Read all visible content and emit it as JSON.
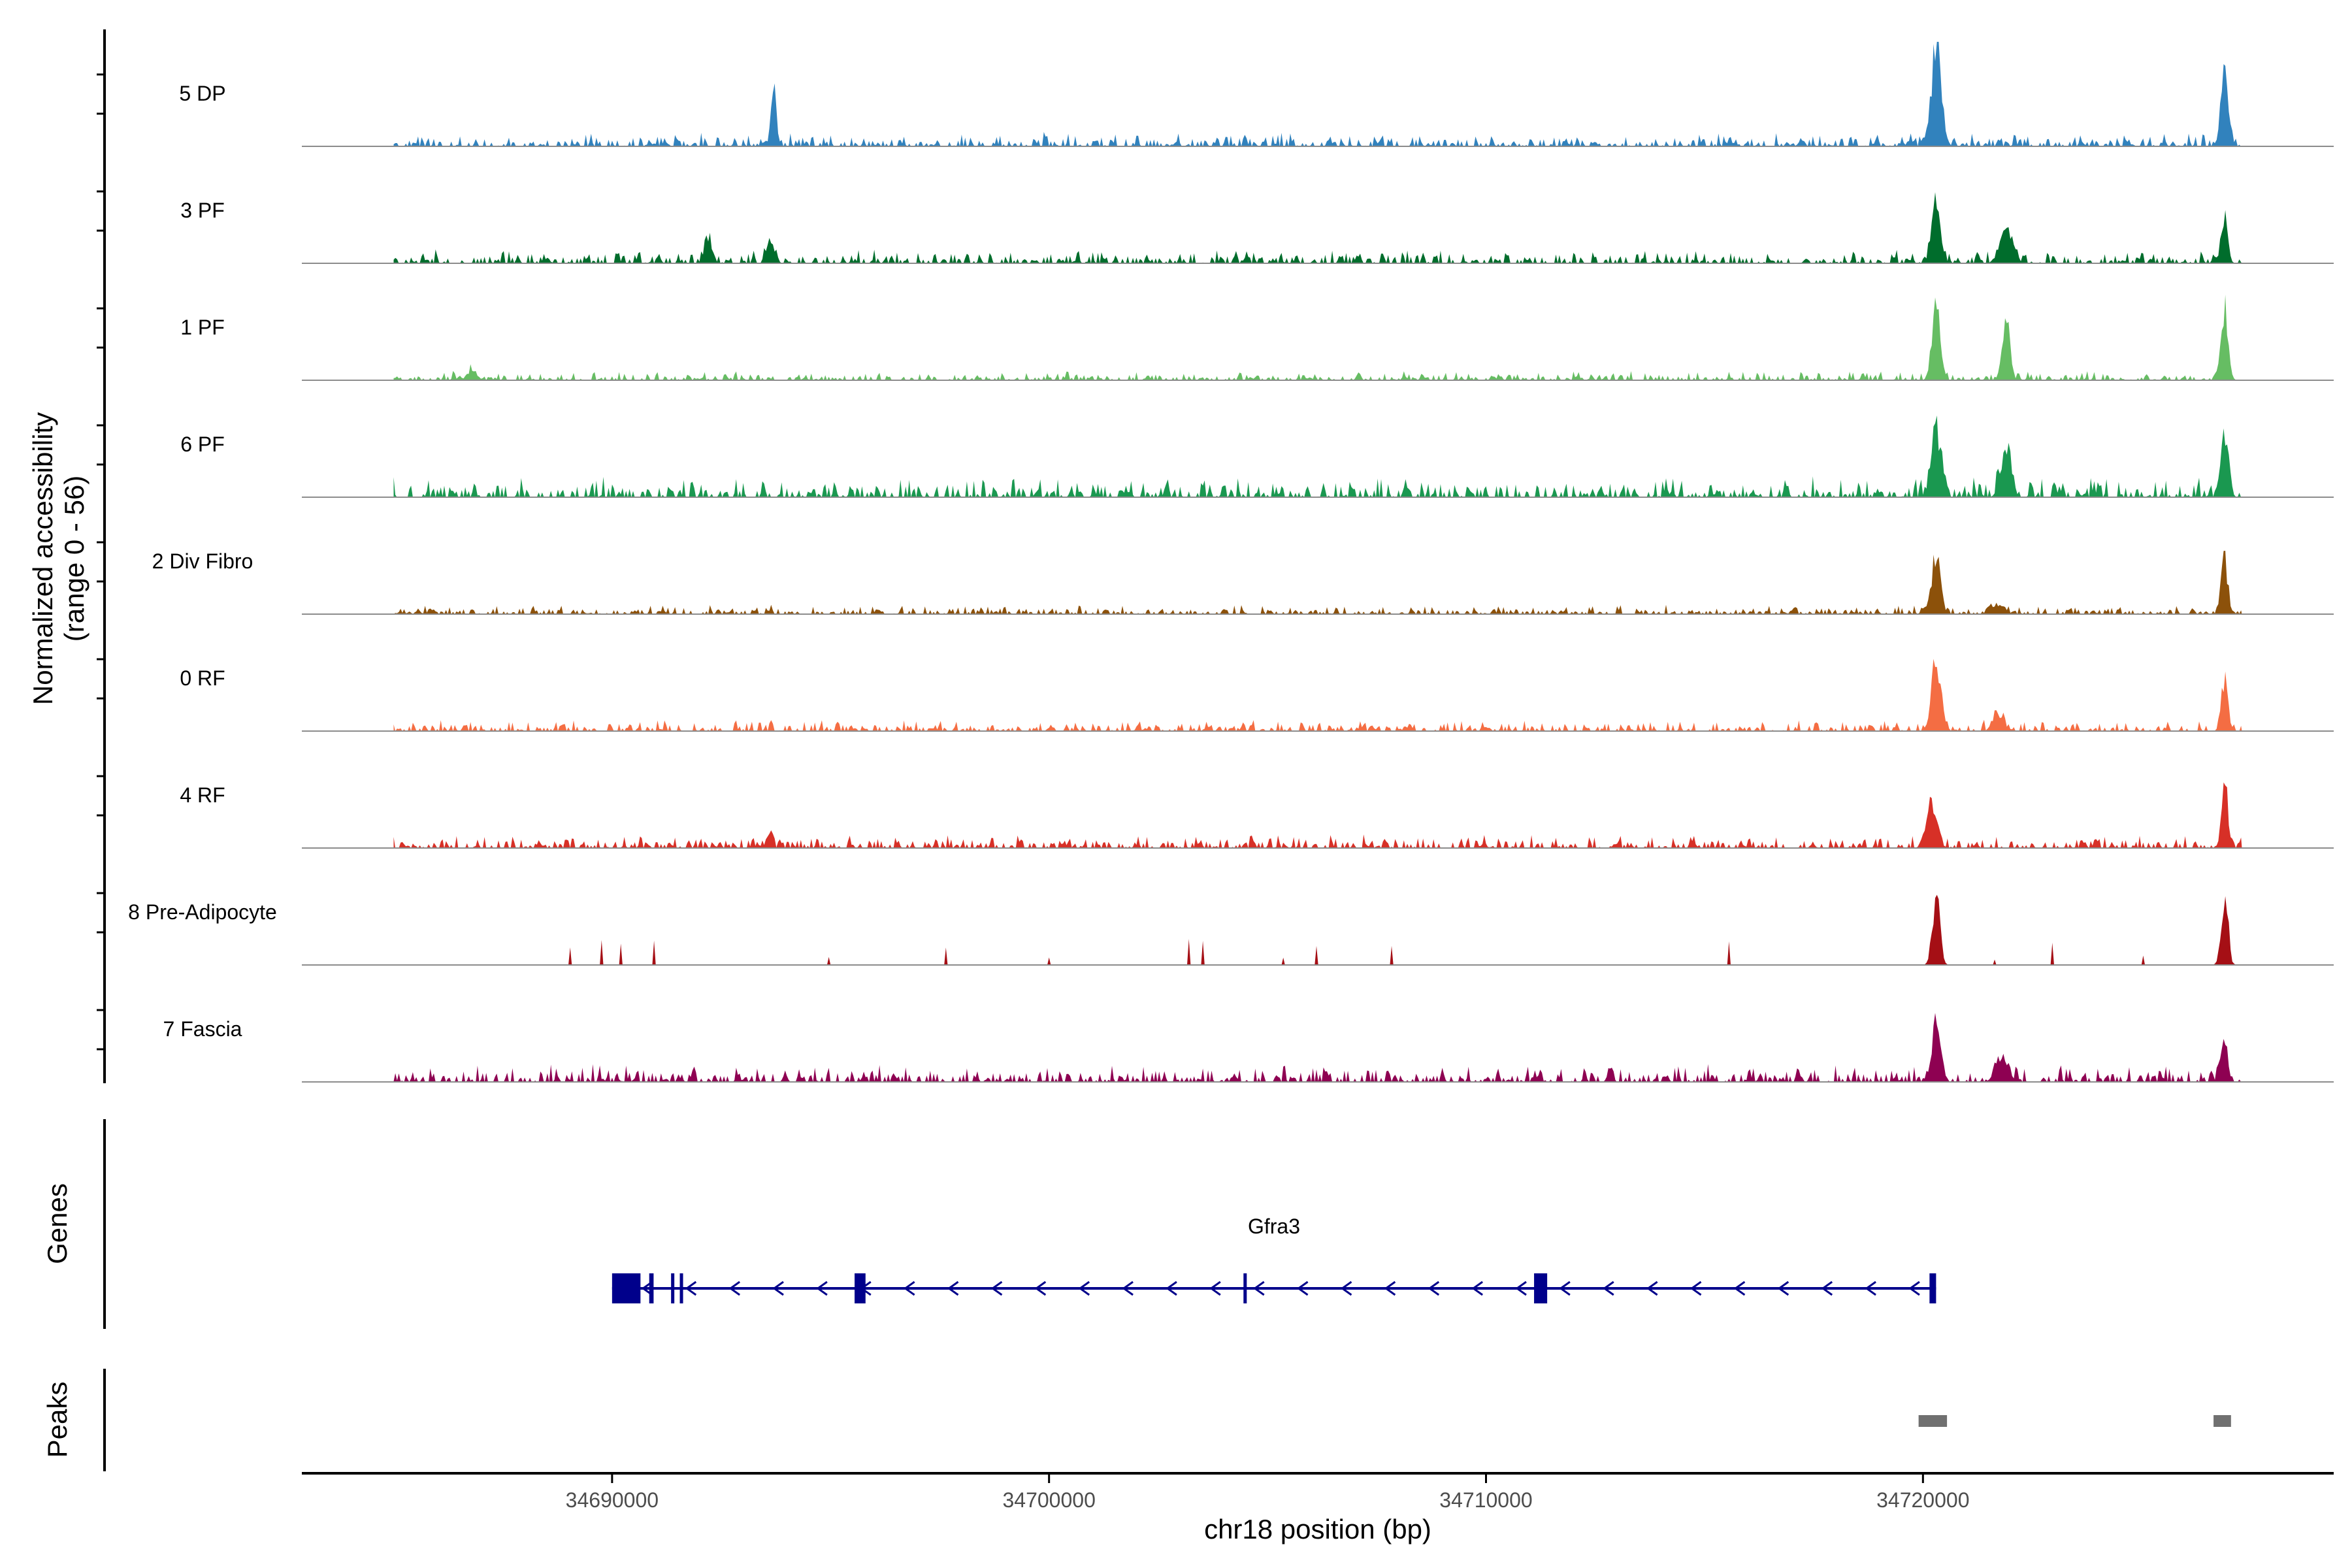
{
  "chart_data": {
    "type": "area",
    "ylabel_lines": [
      "Normalized accessibility",
      "(range 0 - 56)"
    ],
    "yrange": [
      0,
      56
    ],
    "xlabel": "chr18 position (bp)",
    "xlim": [
      34682900,
      34729400
    ],
    "xticks": [
      34690000,
      34700000,
      34710000,
      34720000
    ],
    "xtick_labels": [
      "34690000",
      "34700000",
      "34710000",
      "34720000"
    ],
    "tracks": [
      {
        "label": "5 DP",
        "color": "#3182bd",
        "peaks": [
          [
            34693700,
            30,
            90
          ],
          [
            34720300,
            56,
            160
          ],
          [
            34726900,
            44,
            120
          ]
        ],
        "noise": 6,
        "seed": 11
      },
      {
        "label": "3 PF",
        "color": "#006d2c",
        "peaks": [
          [
            34692200,
            14,
            120
          ],
          [
            34693600,
            14,
            100
          ],
          [
            34720300,
            34,
            140
          ],
          [
            34721900,
            18,
            200
          ],
          [
            34726900,
            28,
            100
          ]
        ],
        "noise": 6,
        "seed": 23
      },
      {
        "label": "1 PF",
        "color": "#66bd63",
        "peaks": [
          [
            34686800,
            6,
            150
          ],
          [
            34720300,
            44,
            130
          ],
          [
            34721900,
            36,
            120
          ],
          [
            34726900,
            42,
            110
          ]
        ],
        "noise": 4,
        "seed": 37
      },
      {
        "label": "6 PF",
        "color": "#1a9850",
        "peaks": [
          [
            34720300,
            40,
            160
          ],
          [
            34721900,
            30,
            160
          ],
          [
            34726900,
            34,
            120
          ]
        ],
        "noise": 9,
        "seed": 41
      },
      {
        "label": "2 Div Fibro",
        "color": "#8c510a",
        "peaks": [
          [
            34720300,
            34,
            140
          ],
          [
            34721700,
            6,
            200
          ],
          [
            34726900,
            30,
            110
          ]
        ],
        "noise": 4,
        "seed": 53
      },
      {
        "label": "0 RF",
        "color": "#f46d43",
        "peaks": [
          [
            34720300,
            40,
            150
          ],
          [
            34721700,
            10,
            150
          ],
          [
            34726900,
            28,
            100
          ]
        ],
        "noise": 5,
        "seed": 61
      },
      {
        "label": "4 RF",
        "color": "#d73027",
        "peaks": [
          [
            34693600,
            10,
            90
          ],
          [
            34720200,
            26,
            170
          ],
          [
            34726900,
            38,
            100
          ]
        ],
        "noise": 6,
        "seed": 73
      },
      {
        "label": "8 Pre-Adipocyte",
        "color": "#a50f15",
        "peaks": [
          [
            34720300,
            40,
            120
          ],
          [
            34726900,
            38,
            110
          ]
        ],
        "noise": 0,
        "spiky": true,
        "seed": 89
      },
      {
        "label": "7 Fascia",
        "color": "#8e0152",
        "peaks": [
          [
            34720300,
            30,
            150
          ],
          [
            34721800,
            12,
            200
          ],
          [
            34726900,
            22,
            110
          ]
        ],
        "noise": 8,
        "seed": 97
      }
    ],
    "genes_label": "Genes",
    "gene": {
      "name": "Gfra3",
      "start": 34690000,
      "end": 34720300,
      "strand": "-",
      "exons": [
        [
          34690000,
          34690650
        ],
        [
          34690850,
          34690950
        ],
        [
          34691350,
          34691400
        ],
        [
          34691550,
          34691600
        ],
        [
          34695550,
          34695800
        ],
        [
          34704450,
          34704500
        ],
        [
          34711100,
          34711400
        ],
        [
          34720150,
          34720300
        ]
      ],
      "color": "#00008b"
    },
    "peaks_label": "Peaks",
    "called_peaks": [
      [
        34719900,
        34720550
      ],
      [
        34726650,
        34727050
      ]
    ],
    "peak_color": "#707070"
  }
}
